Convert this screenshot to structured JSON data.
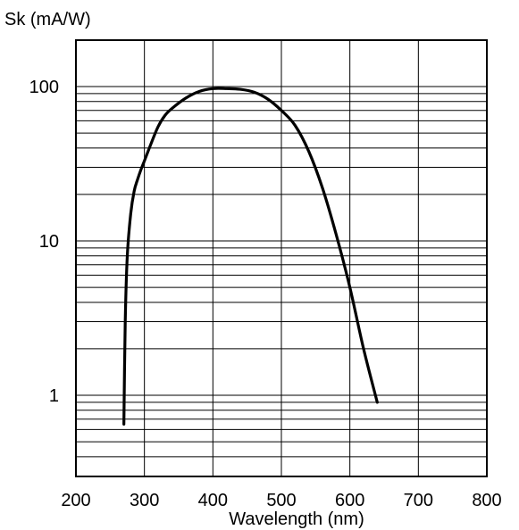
{
  "chart_data": {
    "type": "line",
    "title": "",
    "xlabel": "Wavelength (nm)",
    "ylabel": "Sk (mA/W)",
    "x_scale": "linear",
    "y_scale": "log",
    "xlim": [
      200,
      800
    ],
    "ylim": [
      0.3,
      200
    ],
    "x_ticks": [
      200,
      300,
      400,
      500,
      600,
      700,
      800
    ],
    "x_tick_labels": [
      "200",
      "300",
      "400",
      "500",
      "600",
      "700",
      "800"
    ],
    "y_ticks": [
      1,
      10,
      100
    ],
    "y_tick_labels": [
      "1",
      "10",
      "100"
    ],
    "grid": true,
    "legend": "none",
    "colors": {
      "line": "#000000",
      "grid": "#000000",
      "background": "#ffffff"
    },
    "series": [
      {
        "x": [
          270,
          272,
          275,
          280,
          285,
          290,
          295,
          300,
          310,
          320,
          330,
          340,
          360,
          380,
          400,
          420,
          440,
          460,
          480,
          500,
          520,
          540,
          560,
          580,
          600,
          620,
          640
        ],
        "y": [
          0.65,
          3,
          8,
          15,
          21,
          25,
          29,
          33,
          43,
          55,
          65,
          72,
          84,
          93,
          97,
          97,
          96,
          92,
          83,
          70,
          56,
          38,
          22,
          11,
          5,
          2,
          0.9
        ]
      }
    ]
  }
}
